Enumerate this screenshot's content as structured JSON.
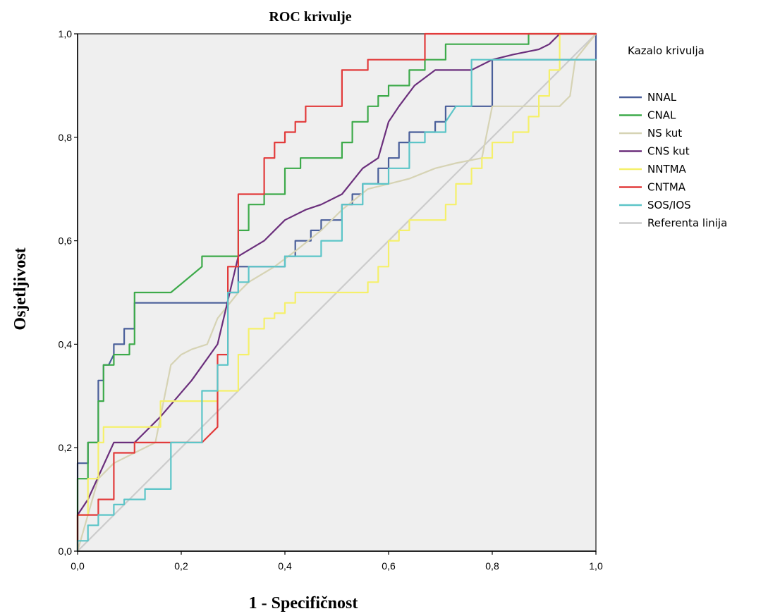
{
  "chart_data": {
    "type": "line",
    "title": "ROC krivulje",
    "xlabel": "1 - Specifičnost",
    "ylabel": "Osjetljivost",
    "xlim": [
      0,
      1
    ],
    "ylim": [
      0,
      1
    ],
    "xticks": [
      "0,0",
      "0,2",
      "0,4",
      "0,6",
      "0,8",
      "1,0"
    ],
    "yticks": [
      "0,0",
      "0,2",
      "0,4",
      "0,6",
      "0,8",
      "1,0"
    ],
    "grid": false,
    "legend": {
      "title": "Kazalo krivulja",
      "placement": "right"
    },
    "series": [
      {
        "name": "NNAL",
        "color": "#4a5f9a",
        "x": [
          0,
          0,
          0.02,
          0.02,
          0.04,
          0.04,
          0.05,
          0.05,
          0.06,
          0.07,
          0.07,
          0.09,
          0.09,
          0.11,
          0.11,
          0.29,
          0.29,
          0.31,
          0.31,
          0.4,
          0.4,
          0.42,
          0.42,
          0.45,
          0.45,
          0.47,
          0.47,
          0.51,
          0.51,
          0.53,
          0.53,
          0.55,
          0.55,
          0.58,
          0.58,
          0.6,
          0.6,
          0.62,
          0.62,
          0.64,
          0.64,
          0.67,
          0.67,
          0.69,
          0.69,
          0.71,
          0.71,
          0.73,
          0.73,
          0.8,
          0.8,
          1.0,
          1.0
        ],
        "y": [
          0,
          0.17,
          0.17,
          0.21,
          0.21,
          0.33,
          0.33,
          0.36,
          0.36,
          0.38,
          0.4,
          0.4,
          0.43,
          0.43,
          0.48,
          0.48,
          0.5,
          0.5,
          0.55,
          0.55,
          0.57,
          0.57,
          0.6,
          0.6,
          0.62,
          0.62,
          0.64,
          0.64,
          0.67,
          0.67,
          0.69,
          0.69,
          0.71,
          0.71,
          0.74,
          0.74,
          0.76,
          0.76,
          0.79,
          0.79,
          0.81,
          0.81,
          0.81,
          0.81,
          0.83,
          0.83,
          0.86,
          0.86,
          0.86,
          0.86,
          0.95,
          0.95,
          1.0
        ]
      },
      {
        "name": "CNAL",
        "color": "#3daa4a",
        "x": [
          0,
          0,
          0.02,
          0.02,
          0.04,
          0.04,
          0.05,
          0.05,
          0.07,
          0.07,
          0.1,
          0.1,
          0.11,
          0.11,
          0.18,
          0.24,
          0.24,
          0.3,
          0.3,
          0.31,
          0.31,
          0.33,
          0.33,
          0.36,
          0.36,
          0.4,
          0.4,
          0.43,
          0.43,
          0.51,
          0.51,
          0.53,
          0.53,
          0.56,
          0.56,
          0.58,
          0.58,
          0.6,
          0.6,
          0.64,
          0.64,
          0.67,
          0.67,
          0.71,
          0.71,
          0.73,
          0.73,
          0.8,
          0.8,
          0.87,
          0.87,
          1.0
        ],
        "y": [
          0,
          0.14,
          0.14,
          0.21,
          0.21,
          0.29,
          0.29,
          0.36,
          0.36,
          0.38,
          0.38,
          0.4,
          0.4,
          0.5,
          0.5,
          0.55,
          0.57,
          0.57,
          0.57,
          0.57,
          0.62,
          0.62,
          0.67,
          0.67,
          0.69,
          0.69,
          0.74,
          0.74,
          0.76,
          0.76,
          0.79,
          0.79,
          0.83,
          0.83,
          0.86,
          0.86,
          0.88,
          0.88,
          0.9,
          0.9,
          0.93,
          0.93,
          0.95,
          0.95,
          0.98,
          0.98,
          0.98,
          0.98,
          0.98,
          0.98,
          1.0,
          1.0
        ]
      },
      {
        "name": "NS kut",
        "color": "#d6d3b4",
        "x": [
          0,
          0.04,
          0.07,
          0.11,
          0.15,
          0.18,
          0.2,
          0.22,
          0.25,
          0.27,
          0.31,
          0.33,
          0.38,
          0.42,
          0.47,
          0.51,
          0.56,
          0.6,
          0.64,
          0.69,
          0.73,
          0.78,
          0.8,
          0.84,
          0.89,
          0.91,
          0.93,
          0.95,
          0.96,
          1.0
        ],
        "y": [
          0,
          0.14,
          0.17,
          0.19,
          0.21,
          0.36,
          0.38,
          0.39,
          0.4,
          0.45,
          0.5,
          0.52,
          0.55,
          0.58,
          0.62,
          0.66,
          0.7,
          0.71,
          0.72,
          0.74,
          0.75,
          0.76,
          0.86,
          0.86,
          0.86,
          0.86,
          0.86,
          0.88,
          0.95,
          1.0
        ]
      },
      {
        "name": "CNS kut",
        "color": "#6b2f7c",
        "x": [
          0,
          0,
          0.02,
          0.07,
          0.11,
          0.16,
          0.22,
          0.27,
          0.31,
          0.36,
          0.4,
          0.44,
          0.47,
          0.51,
          0.55,
          0.58,
          0.6,
          0.62,
          0.65,
          0.69,
          0.73,
          0.76,
          0.8,
          0.84,
          0.89,
          0.91,
          0.93,
          0.96,
          1.0
        ],
        "y": [
          0,
          0.07,
          0.1,
          0.21,
          0.21,
          0.26,
          0.33,
          0.4,
          0.57,
          0.6,
          0.64,
          0.66,
          0.67,
          0.69,
          0.74,
          0.76,
          0.83,
          0.86,
          0.9,
          0.93,
          0.93,
          0.93,
          0.95,
          0.96,
          0.97,
          0.98,
          1.0,
          1.0,
          1.0
        ]
      },
      {
        "name": "NNTMA",
        "color": "#f5f06a",
        "x": [
          0,
          0,
          0.02,
          0.02,
          0.04,
          0.04,
          0.05,
          0.05,
          0.16,
          0.16,
          0.27,
          0.27,
          0.31,
          0.31,
          0.33,
          0.33,
          0.36,
          0.36,
          0.38,
          0.38,
          0.4,
          0.4,
          0.42,
          0.42,
          0.44,
          0.44,
          0.47,
          0.47,
          0.56,
          0.56,
          0.58,
          0.58,
          0.6,
          0.6,
          0.62,
          0.62,
          0.64,
          0.64,
          0.67,
          0.67,
          0.71,
          0.71,
          0.73,
          0.73,
          0.76,
          0.76,
          0.78,
          0.78,
          0.8,
          0.8,
          0.84,
          0.84,
          0.87,
          0.87,
          0.89,
          0.89,
          0.91,
          0.91,
          0.93,
          0.93,
          1.0
        ],
        "y": [
          0,
          0.07,
          0.07,
          0.14,
          0.14,
          0.21,
          0.21,
          0.24,
          0.24,
          0.29,
          0.29,
          0.31,
          0.31,
          0.38,
          0.38,
          0.43,
          0.43,
          0.45,
          0.45,
          0.46,
          0.46,
          0.48,
          0.48,
          0.5,
          0.5,
          0.5,
          0.5,
          0.5,
          0.5,
          0.52,
          0.52,
          0.55,
          0.55,
          0.6,
          0.6,
          0.62,
          0.62,
          0.64,
          0.64,
          0.64,
          0.64,
          0.67,
          0.67,
          0.71,
          0.71,
          0.74,
          0.74,
          0.76,
          0.76,
          0.79,
          0.79,
          0.81,
          0.81,
          0.84,
          0.84,
          0.88,
          0.88,
          0.93,
          0.93,
          1.0,
          1.0
        ]
      },
      {
        "name": "CNTMA",
        "color": "#e23b3b",
        "x": [
          0,
          0,
          0.04,
          0.04,
          0.07,
          0.07,
          0.11,
          0.11,
          0.16,
          0.16,
          0.24,
          0.27,
          0.27,
          0.29,
          0.29,
          0.31,
          0.31,
          0.36,
          0.36,
          0.38,
          0.38,
          0.4,
          0.4,
          0.42,
          0.42,
          0.44,
          0.44,
          0.51,
          0.51,
          0.56,
          0.56,
          0.58,
          0.58,
          0.67,
          0.67,
          1.0
        ],
        "y": [
          0,
          0.07,
          0.07,
          0.1,
          0.1,
          0.19,
          0.19,
          0.21,
          0.21,
          0.21,
          0.21,
          0.24,
          0.38,
          0.38,
          0.55,
          0.55,
          0.69,
          0.69,
          0.76,
          0.76,
          0.79,
          0.79,
          0.81,
          0.81,
          0.83,
          0.83,
          0.86,
          0.86,
          0.93,
          0.93,
          0.95,
          0.95,
          0.95,
          0.95,
          1.0,
          1.0
        ]
      },
      {
        "name": "SOS/IOS",
        "color": "#5cc5c8",
        "x": [
          0,
          0,
          0.02,
          0.02,
          0.04,
          0.04,
          0.07,
          0.07,
          0.09,
          0.09,
          0.13,
          0.13,
          0.16,
          0.18,
          0.18,
          0.24,
          0.24,
          0.27,
          0.27,
          0.29,
          0.29,
          0.31,
          0.31,
          0.33,
          0.33,
          0.4,
          0.4,
          0.47,
          0.47,
          0.51,
          0.51,
          0.55,
          0.55,
          0.6,
          0.6,
          0.64,
          0.64,
          0.67,
          0.67,
          0.71,
          0.71,
          0.73,
          0.76,
          0.76,
          1.0
        ],
        "y": [
          0,
          0.02,
          0.02,
          0.05,
          0.05,
          0.07,
          0.07,
          0.09,
          0.09,
          0.1,
          0.1,
          0.12,
          0.12,
          0.12,
          0.21,
          0.21,
          0.31,
          0.31,
          0.36,
          0.36,
          0.5,
          0.5,
          0.52,
          0.52,
          0.55,
          0.55,
          0.57,
          0.57,
          0.6,
          0.6,
          0.67,
          0.67,
          0.71,
          0.71,
          0.74,
          0.74,
          0.79,
          0.79,
          0.81,
          0.81,
          0.83,
          0.86,
          0.86,
          0.95,
          0.95
        ]
      },
      {
        "name": "Referenta linija",
        "color": "#cccccc",
        "x": [
          0,
          1
        ],
        "y": [
          0,
          1
        ]
      }
    ]
  }
}
